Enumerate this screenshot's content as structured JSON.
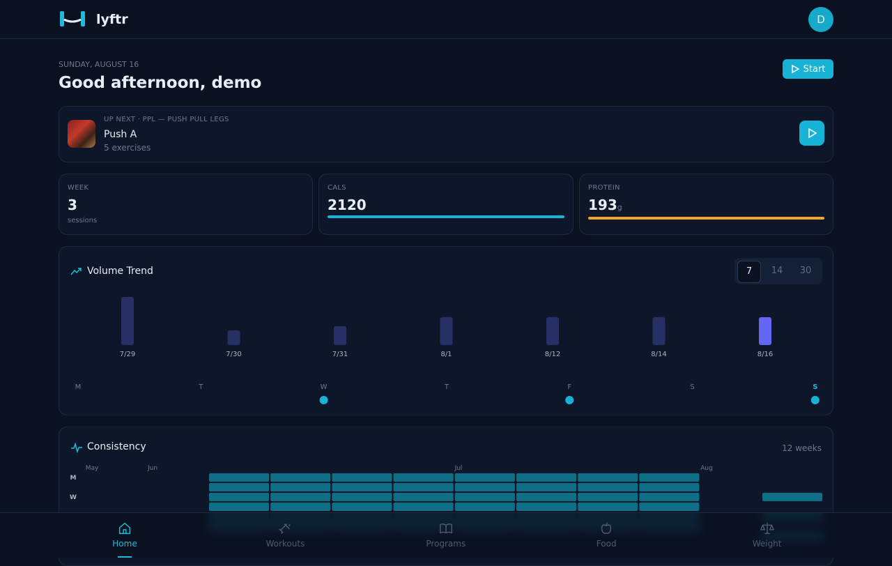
{
  "header": {
    "brand": "lyftr",
    "avatar": "D"
  },
  "greeting": {
    "date": "SUNDAY, AUGUST 16",
    "title": "Good afternoon, demo",
    "start": "Start"
  },
  "up_next": {
    "label": "UP NEXT · PPL — PUSH PULL LEGS",
    "title": "Push A",
    "subtitle": "5 exercises"
  },
  "stats": [
    {
      "label": "WEEK",
      "value": 3,
      "note": "sessions"
    },
    {
      "label": "CALS",
      "value": 2120
    },
    {
      "label": "PROTEIN",
      "value": 193,
      "unit": "g"
    }
  ],
  "volume_trend": {
    "title": "Volume Trend",
    "ranges": [
      7,
      14,
      30
    ],
    "selected_range": 0,
    "dates": [
      "7/29",
      "7/30",
      "7/31",
      "8/1",
      "8/12",
      "8/14",
      "8/16"
    ],
    "values": [
      69,
      21,
      27,
      40,
      40,
      40,
      40
    ],
    "highlight": 6,
    "weekdays": [
      "M",
      "T",
      "W",
      "T",
      "F",
      "S",
      "S"
    ],
    "trained": [
      false,
      false,
      true,
      false,
      true,
      false,
      true
    ],
    "today": 6
  },
  "consistency": {
    "title": "Consistency",
    "period": "12 weeks",
    "months": [
      "May",
      "Jun",
      "Jul",
      "Aug"
    ],
    "days": [
      "M",
      "W"
    ]
  },
  "nav": [
    {
      "label": "Home",
      "active": true
    },
    {
      "label": "Workouts",
      "active": false
    },
    {
      "label": "Programs",
      "active": false
    },
    {
      "label": "Food",
      "active": false
    },
    {
      "label": "Weight",
      "active": false
    }
  ]
}
